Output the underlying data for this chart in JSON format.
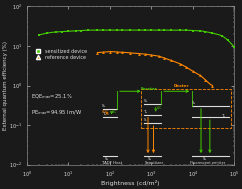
{
  "xlabel": "Brightness (cd/m²)",
  "ylabel": "External quantum efficiency (%)",
  "background": "#1a1a1a",
  "plot_bg": "#1a1a1a",
  "green_color": "#44cc00",
  "orange_color": "#ff8800",
  "text_color": "#dddddd",
  "axis_color": "#888888",
  "eqe_text": "EQE",
  "eqe_sub": "max",
  "eqe_val": "=25.1%",
  "pe_text": "PE",
  "pe_sub": "max",
  "pe_val": "=94.95 lm/W",
  "forster_label": "Forster",
  "dexter_label": "Dexter",
  "legend1": "sensitized device",
  "legend2": "reference device",
  "x_green": [
    2,
    3,
    5,
    7,
    10,
    15,
    20,
    30,
    50,
    70,
    100,
    150,
    200,
    300,
    500,
    700,
    1000,
    1500,
    2000,
    3000,
    5000,
    7000,
    10000,
    15000,
    20000,
    30000,
    50000,
    70000,
    100000
  ],
  "y_green": [
    19,
    21,
    22.5,
    23,
    23.5,
    24,
    24.5,
    25,
    25.1,
    25.1,
    25.1,
    25.1,
    25.1,
    25.1,
    25.1,
    25.1,
    25.1,
    25.1,
    25.1,
    25.0,
    25.0,
    25.0,
    24.5,
    24.0,
    23.0,
    21.0,
    18.0,
    14.0,
    9.5
  ],
  "x_orange": [
    50,
    70,
    100,
    150,
    200,
    300,
    500,
    700,
    1000,
    1500,
    2000,
    3000,
    5000,
    7000,
    10000,
    15000,
    20000,
    30000
  ],
  "y_orange": [
    6.8,
    7.0,
    7.2,
    7.0,
    6.9,
    6.7,
    6.4,
    6.2,
    5.9,
    5.5,
    5.0,
    4.3,
    3.5,
    2.9,
    2.3,
    1.8,
    1.4,
    1.0
  ]
}
